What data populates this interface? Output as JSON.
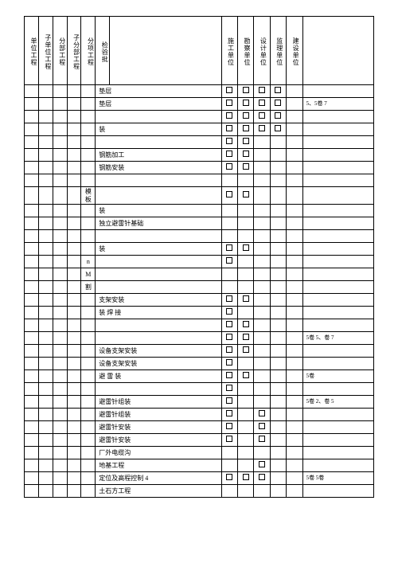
{
  "headers": {
    "col1": "单位工程",
    "col2": "子单位工程",
    "col3": "分部工程",
    "col4": "子分部工程",
    "col5": "分项工程",
    "col6": "检验批",
    "col7": "施工单位",
    "col8": "勘察单位",
    "col9": "设计单位",
    "col10": "监理单位",
    "col11": "建设单位"
  },
  "rows": [
    {
      "c5": "",
      "c6": "垫层",
      "chk": [
        1,
        1,
        1,
        1
      ],
      "note": ""
    },
    {
      "c5": "",
      "c6": "垫层",
      "chk": [
        1,
        1,
        1,
        1
      ],
      "note": "5、5卷 7"
    },
    {
      "c5": "",
      "c6": "",
      "chk": [
        1,
        1,
        1,
        1
      ],
      "note": ""
    },
    {
      "c5": "",
      "c6": "装",
      "chk": [
        1,
        1,
        1,
        1
      ],
      "note": ""
    },
    {
      "c5": "",
      "c6": "",
      "chk": [
        1,
        1,
        0,
        0
      ],
      "note": ""
    },
    {
      "c5": "",
      "c6": "钢筋加工",
      "chk": [
        1,
        1,
        0,
        0
      ],
      "note": ""
    },
    {
      "c5": "",
      "c6": "钢筋安装",
      "chk": [
        1,
        1,
        0,
        0
      ],
      "note": ""
    },
    {
      "c5": "",
      "c6": "",
      "chk": [
        0,
        0,
        0,
        0
      ],
      "note": ""
    },
    {
      "c5": "模 板",
      "c6": "",
      "chk": [
        1,
        1,
        0,
        0
      ],
      "note": ""
    },
    {
      "c5": "",
      "c6": "装",
      "chk": [
        0,
        0,
        0,
        0
      ],
      "note": ""
    },
    {
      "c5": "",
      "c6": "独立避雷针基础",
      "chk": [
        0,
        0,
        0,
        0
      ],
      "note": ""
    },
    {
      "c5": "",
      "c6": "",
      "chk": [
        0,
        0,
        0,
        0
      ],
      "note": ""
    },
    {
      "c5": "",
      "c6": "装",
      "chk": [
        1,
        1,
        0,
        0
      ],
      "note": ""
    },
    {
      "c5": "n",
      "c6": "",
      "chk": [
        1,
        0,
        0,
        0
      ],
      "note": ""
    },
    {
      "c5": "M",
      "c6": "",
      "chk": [
        0,
        0,
        0,
        0
      ],
      "note": ""
    },
    {
      "c5": "割",
      "c6": "",
      "chk": [
        0,
        0,
        0,
        0
      ],
      "note": ""
    },
    {
      "c5": "",
      "c6": "支架安装",
      "chk": [
        1,
        1,
        0,
        0
      ],
      "note": ""
    },
    {
      "c5": "",
      "c6": "装 焊 接",
      "chk": [
        1,
        0,
        0,
        0
      ],
      "note": ""
    },
    {
      "c5": "",
      "c6": "",
      "chk": [
        1,
        1,
        0,
        0
      ],
      "note": ""
    },
    {
      "c5": "",
      "c6": "",
      "chk": [
        1,
        1,
        0,
        0
      ],
      "note": "5卷 5、卷 7"
    },
    {
      "c5": "",
      "c6": "设备支架安装",
      "chk": [
        1,
        1,
        0,
        0
      ],
      "note": ""
    },
    {
      "c5": "",
      "c6": "设备支架安装",
      "chk": [
        1,
        0,
        0,
        0
      ],
      "note": ""
    },
    {
      "c5": "",
      "c6": "避 雷 装",
      "chk": [
        1,
        1,
        0,
        0
      ],
      "note": "5卷"
    },
    {
      "c5": "",
      "c6": "",
      "chk": [
        1,
        0,
        0,
        0
      ],
      "note": ""
    },
    {
      "c5": "",
      "c6": "避雷针组装",
      "chk": [
        1,
        0,
        0,
        0
      ],
      "note": "5卷 2、卷 5"
    },
    {
      "c5": "",
      "c6": "避雷针组装",
      "chk": [
        1,
        0,
        1,
        0
      ],
      "note": ""
    },
    {
      "c5": "",
      "c6": "避雷针安装",
      "chk": [
        1,
        0,
        1,
        0
      ],
      "note": ""
    },
    {
      "c5": "",
      "c6": "避雷针安装",
      "chk": [
        1,
        0,
        1,
        0
      ],
      "note": ""
    },
    {
      "c5": "",
      "c6": "厂外电缆沟",
      "chk": [
        0,
        0,
        0,
        0
      ],
      "note": ""
    },
    {
      "c5": "",
      "c6": "地基工程",
      "chk": [
        0,
        0,
        1,
        0
      ],
      "note": ""
    },
    {
      "c5": "",
      "c6": "定位及高程控制 4",
      "chk": [
        1,
        1,
        1,
        0
      ],
      "note": "5卷 5卷"
    },
    {
      "c5": "",
      "c6": "土石方工程",
      "chk": [
        0,
        0,
        0,
        0
      ],
      "note": ""
    }
  ],
  "colors": {
    "border": "#000000",
    "bg": "#ffffff",
    "text": "#000000"
  }
}
